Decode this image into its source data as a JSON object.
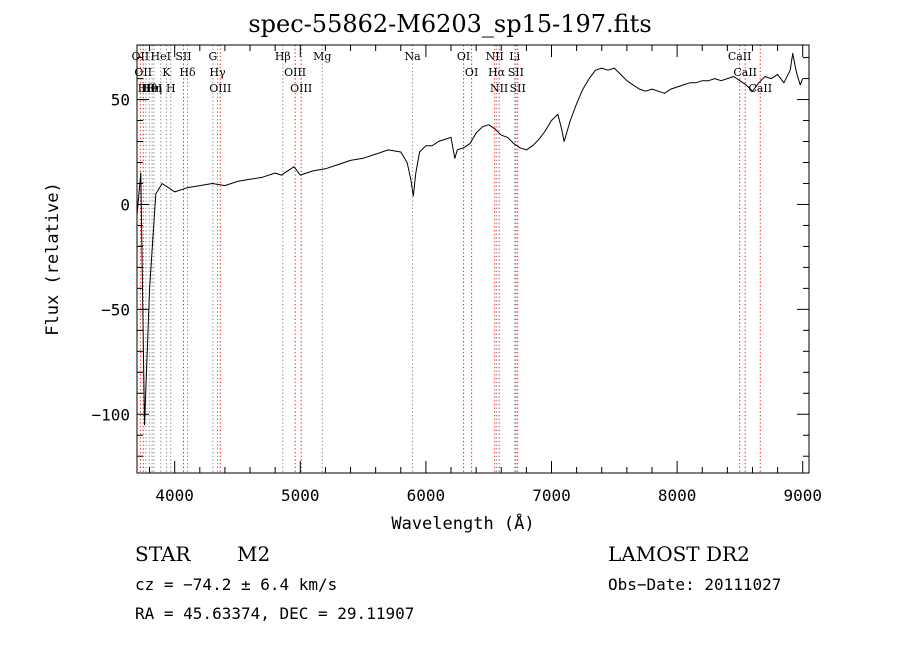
{
  "chart_data": {
    "type": "line",
    "title": "spec-55862-M6203_sp15-197.fits",
    "xlabel": "Wavelength (Å)",
    "ylabel": "Flux (relative)",
    "xlim": [
      3700,
      9050
    ],
    "ylim": [
      -128,
      76
    ],
    "xticks": [
      4000,
      5000,
      6000,
      7000,
      8000,
      9000
    ],
    "yticks": [
      -100,
      -50,
      0,
      50
    ],
    "grid": false,
    "series": [
      {
        "color": "#000000",
        "x": [
          3700,
          3730,
          3760,
          3800,
          3850,
          3900,
          3950,
          4000,
          4100,
          4200,
          4300,
          4400,
          4500,
          4600,
          4700,
          4800,
          4850,
          4900,
          4950,
          5000,
          5100,
          5200,
          5300,
          5400,
          5500,
          5600,
          5700,
          5800,
          5850,
          5880,
          5900,
          5920,
          5950,
          6000,
          6050,
          6100,
          6150,
          6200,
          6230,
          6250,
          6300,
          6350,
          6400,
          6450,
          6500,
          6550,
          6600,
          6650,
          6700,
          6750,
          6800,
          6850,
          6900,
          6950,
          7000,
          7050,
          7080,
          7100,
          7120,
          7150,
          7200,
          7250,
          7300,
          7350,
          7400,
          7450,
          7500,
          7550,
          7600,
          7650,
          7700,
          7750,
          7800,
          7850,
          7900,
          7950,
          8000,
          8050,
          8100,
          8150,
          8200,
          8250,
          8300,
          8350,
          8400,
          8450,
          8500,
          8550,
          8600,
          8650,
          8700,
          8750,
          8800,
          8850,
          8900,
          8920,
          8950,
          8980,
          9000
        ],
        "y": [
          -5,
          15,
          -105,
          -40,
          5,
          10,
          8,
          6,
          8,
          9,
          10,
          9,
          11,
          12,
          13,
          15,
          14,
          16,
          18,
          14,
          16,
          17,
          19,
          21,
          22,
          24,
          26,
          25,
          20,
          12,
          4,
          15,
          25,
          28,
          28,
          30,
          31,
          32,
          22,
          26,
          27,
          29,
          34,
          37,
          38,
          36,
          33,
          32,
          29,
          27,
          26,
          28,
          31,
          35,
          40,
          43,
          36,
          30,
          34,
          40,
          48,
          55,
          60,
          64,
          65,
          64,
          65,
          62,
          59,
          57,
          55,
          54,
          55,
          54,
          53,
          55,
          56,
          57,
          58,
          58,
          59,
          59,
          60,
          59,
          60,
          61,
          59,
          57,
          54,
          58,
          61,
          60,
          62,
          58,
          64,
          72,
          63,
          57,
          60
        ]
      }
    ],
    "lines": [
      {
        "wl": 3727,
        "labels": [
          "OII"
        ],
        "color": "#ff0000"
      },
      {
        "wl": 3750,
        "labels": [
          "OII"
        ],
        "color": "#ff0000"
      },
      {
        "wl": 3771,
        "labels": [
          "Hθ"
        ],
        "color": "#7f7f7f"
      },
      {
        "wl": 3798,
        "labels": [
          "Hθ"
        ],
        "color": "#7f7f7f"
      },
      {
        "wl": 3820,
        "labels": [
          "HeI"
        ],
        "color": "#7f7f7f"
      },
      {
        "wl": 3835,
        "labels": [
          "Hη"
        ],
        "color": "#7f7f7f"
      },
      {
        "wl": 3889,
        "labels": [
          "HeI"
        ],
        "color": "#7f7f7f"
      },
      {
        "wl": 3934,
        "labels": [
          "K"
        ],
        "color": "#7f7f7f"
      },
      {
        "wl": 3969,
        "labels": [
          "H"
        ],
        "color": "#7f7f7f"
      },
      {
        "wl": 4070,
        "labels": [
          "SII"
        ],
        "color": "#ff0000"
      },
      {
        "wl": 4102,
        "labels": [
          "Hδ"
        ],
        "color": "#7f7f7f"
      },
      {
        "wl": 4304,
        "labels": [
          "G"
        ],
        "color": "#7f7f7f"
      },
      {
        "wl": 4341,
        "labels": [
          "Hγ"
        ],
        "color": "#7f7f7f"
      },
      {
        "wl": 4363,
        "labels": [
          "OIII"
        ],
        "color": "#ff0000"
      },
      {
        "wl": 4861,
        "labels": [
          "Hβ"
        ],
        "color": "#7f7f7f"
      },
      {
        "wl": 4959,
        "labels": [
          "OIII"
        ],
        "color": "#ff0000"
      },
      {
        "wl": 5007,
        "labels": [
          "OIII"
        ],
        "color": "#ff0000"
      },
      {
        "wl": 5175,
        "labels": [
          "Mg"
        ],
        "color": "#7f7f7f"
      },
      {
        "wl": 5894,
        "labels": [
          "Na"
        ],
        "color": "#7f7f7f"
      },
      {
        "wl": 6300,
        "labels": [
          "OI"
        ],
        "color": "#ff0000"
      },
      {
        "wl": 6364,
        "labels": [
          "OI"
        ],
        "color": "#ff0000"
      },
      {
        "wl": 6548,
        "labels": [
          "NII"
        ],
        "color": "#ff0000"
      },
      {
        "wl": 6563,
        "labels": [
          "Hα"
        ],
        "color": "#7f7f7f"
      },
      {
        "wl": 6583,
        "labels": [
          "NII"
        ],
        "color": "#ff0000"
      },
      {
        "wl": 6707,
        "labels": [
          "Li"
        ],
        "color": "#7f7f7f"
      },
      {
        "wl": 6716,
        "labels": [
          "SII"
        ],
        "color": "#ff0000"
      },
      {
        "wl": 6731,
        "labels": [
          "SII"
        ],
        "color": "#ff0000"
      },
      {
        "wl": 8498,
        "labels": [
          "CaII"
        ],
        "color": "#ff0000"
      },
      {
        "wl": 8542,
        "labels": [
          "CaII"
        ],
        "color": "#ff0000"
      },
      {
        "wl": 8662,
        "labels": [
          "CaII"
        ],
        "color": "#ff0000"
      }
    ]
  },
  "info": {
    "class": "STAR",
    "subclass": "M2",
    "redshift": "cz = −74.2 ± 6.4 km/s",
    "coords": "RA =  45.63374, DEC =  29.11907",
    "survey": "LAMOST DR2",
    "obs_date": "Obs−Date: 20111027"
  }
}
